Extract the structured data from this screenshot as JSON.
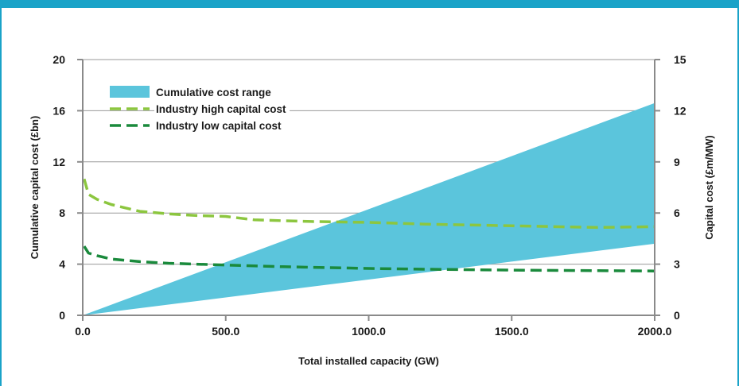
{
  "chart_data": {
    "type": "area",
    "xlabel": "Total installed capacity (GW)",
    "ylabel_left": "Cumulative capital cost (£bn)",
    "ylabel_right": "Capital cost (£m/MW)",
    "xlim": [
      0,
      2000
    ],
    "ylim_left": [
      0,
      20
    ],
    "ylim_right": [
      0,
      15
    ],
    "x_ticks": [
      "0.0",
      "500.0",
      "1000.0",
      "1500.0",
      "2000.0"
    ],
    "y_left_ticks": [
      "0",
      "4",
      "8",
      "12",
      "16",
      "20"
    ],
    "y_right_ticks": [
      "0",
      "3",
      "6",
      "9",
      "12",
      "15"
    ],
    "grid": true,
    "legend_position": "top-left",
    "colors": {
      "range": "#5bc5dc",
      "high": "#8cc63f",
      "low": "#1a8a3c",
      "frame": "#1aa3c8"
    },
    "series": [
      {
        "name": "Cumulative cost range",
        "type": "area",
        "axis": "left",
        "x": [
          0,
          2000
        ],
        "lower": [
          0,
          5.6
        ],
        "upper": [
          0,
          16.6
        ]
      },
      {
        "name": "Industry high capital cost",
        "type": "line",
        "style": "dashed",
        "axis": "right",
        "x": [
          5,
          20,
          50,
          100,
          200,
          300,
          400,
          500,
          600,
          700,
          800,
          1000,
          1200,
          1500,
          1800,
          2000
        ],
        "values": [
          8.0,
          7.1,
          6.8,
          6.5,
          6.1,
          5.95,
          5.85,
          5.8,
          5.6,
          5.55,
          5.5,
          5.45,
          5.35,
          5.25,
          5.15,
          5.2
        ]
      },
      {
        "name": "Industry low capital cost",
        "type": "line",
        "style": "dashed",
        "axis": "right",
        "x": [
          5,
          20,
          50,
          100,
          200,
          300,
          500,
          700,
          1000,
          1200,
          1500,
          1800,
          2000
        ],
        "values": [
          4.05,
          3.65,
          3.5,
          3.3,
          3.15,
          3.05,
          2.95,
          2.85,
          2.75,
          2.7,
          2.65,
          2.62,
          2.6
        ]
      }
    ]
  }
}
